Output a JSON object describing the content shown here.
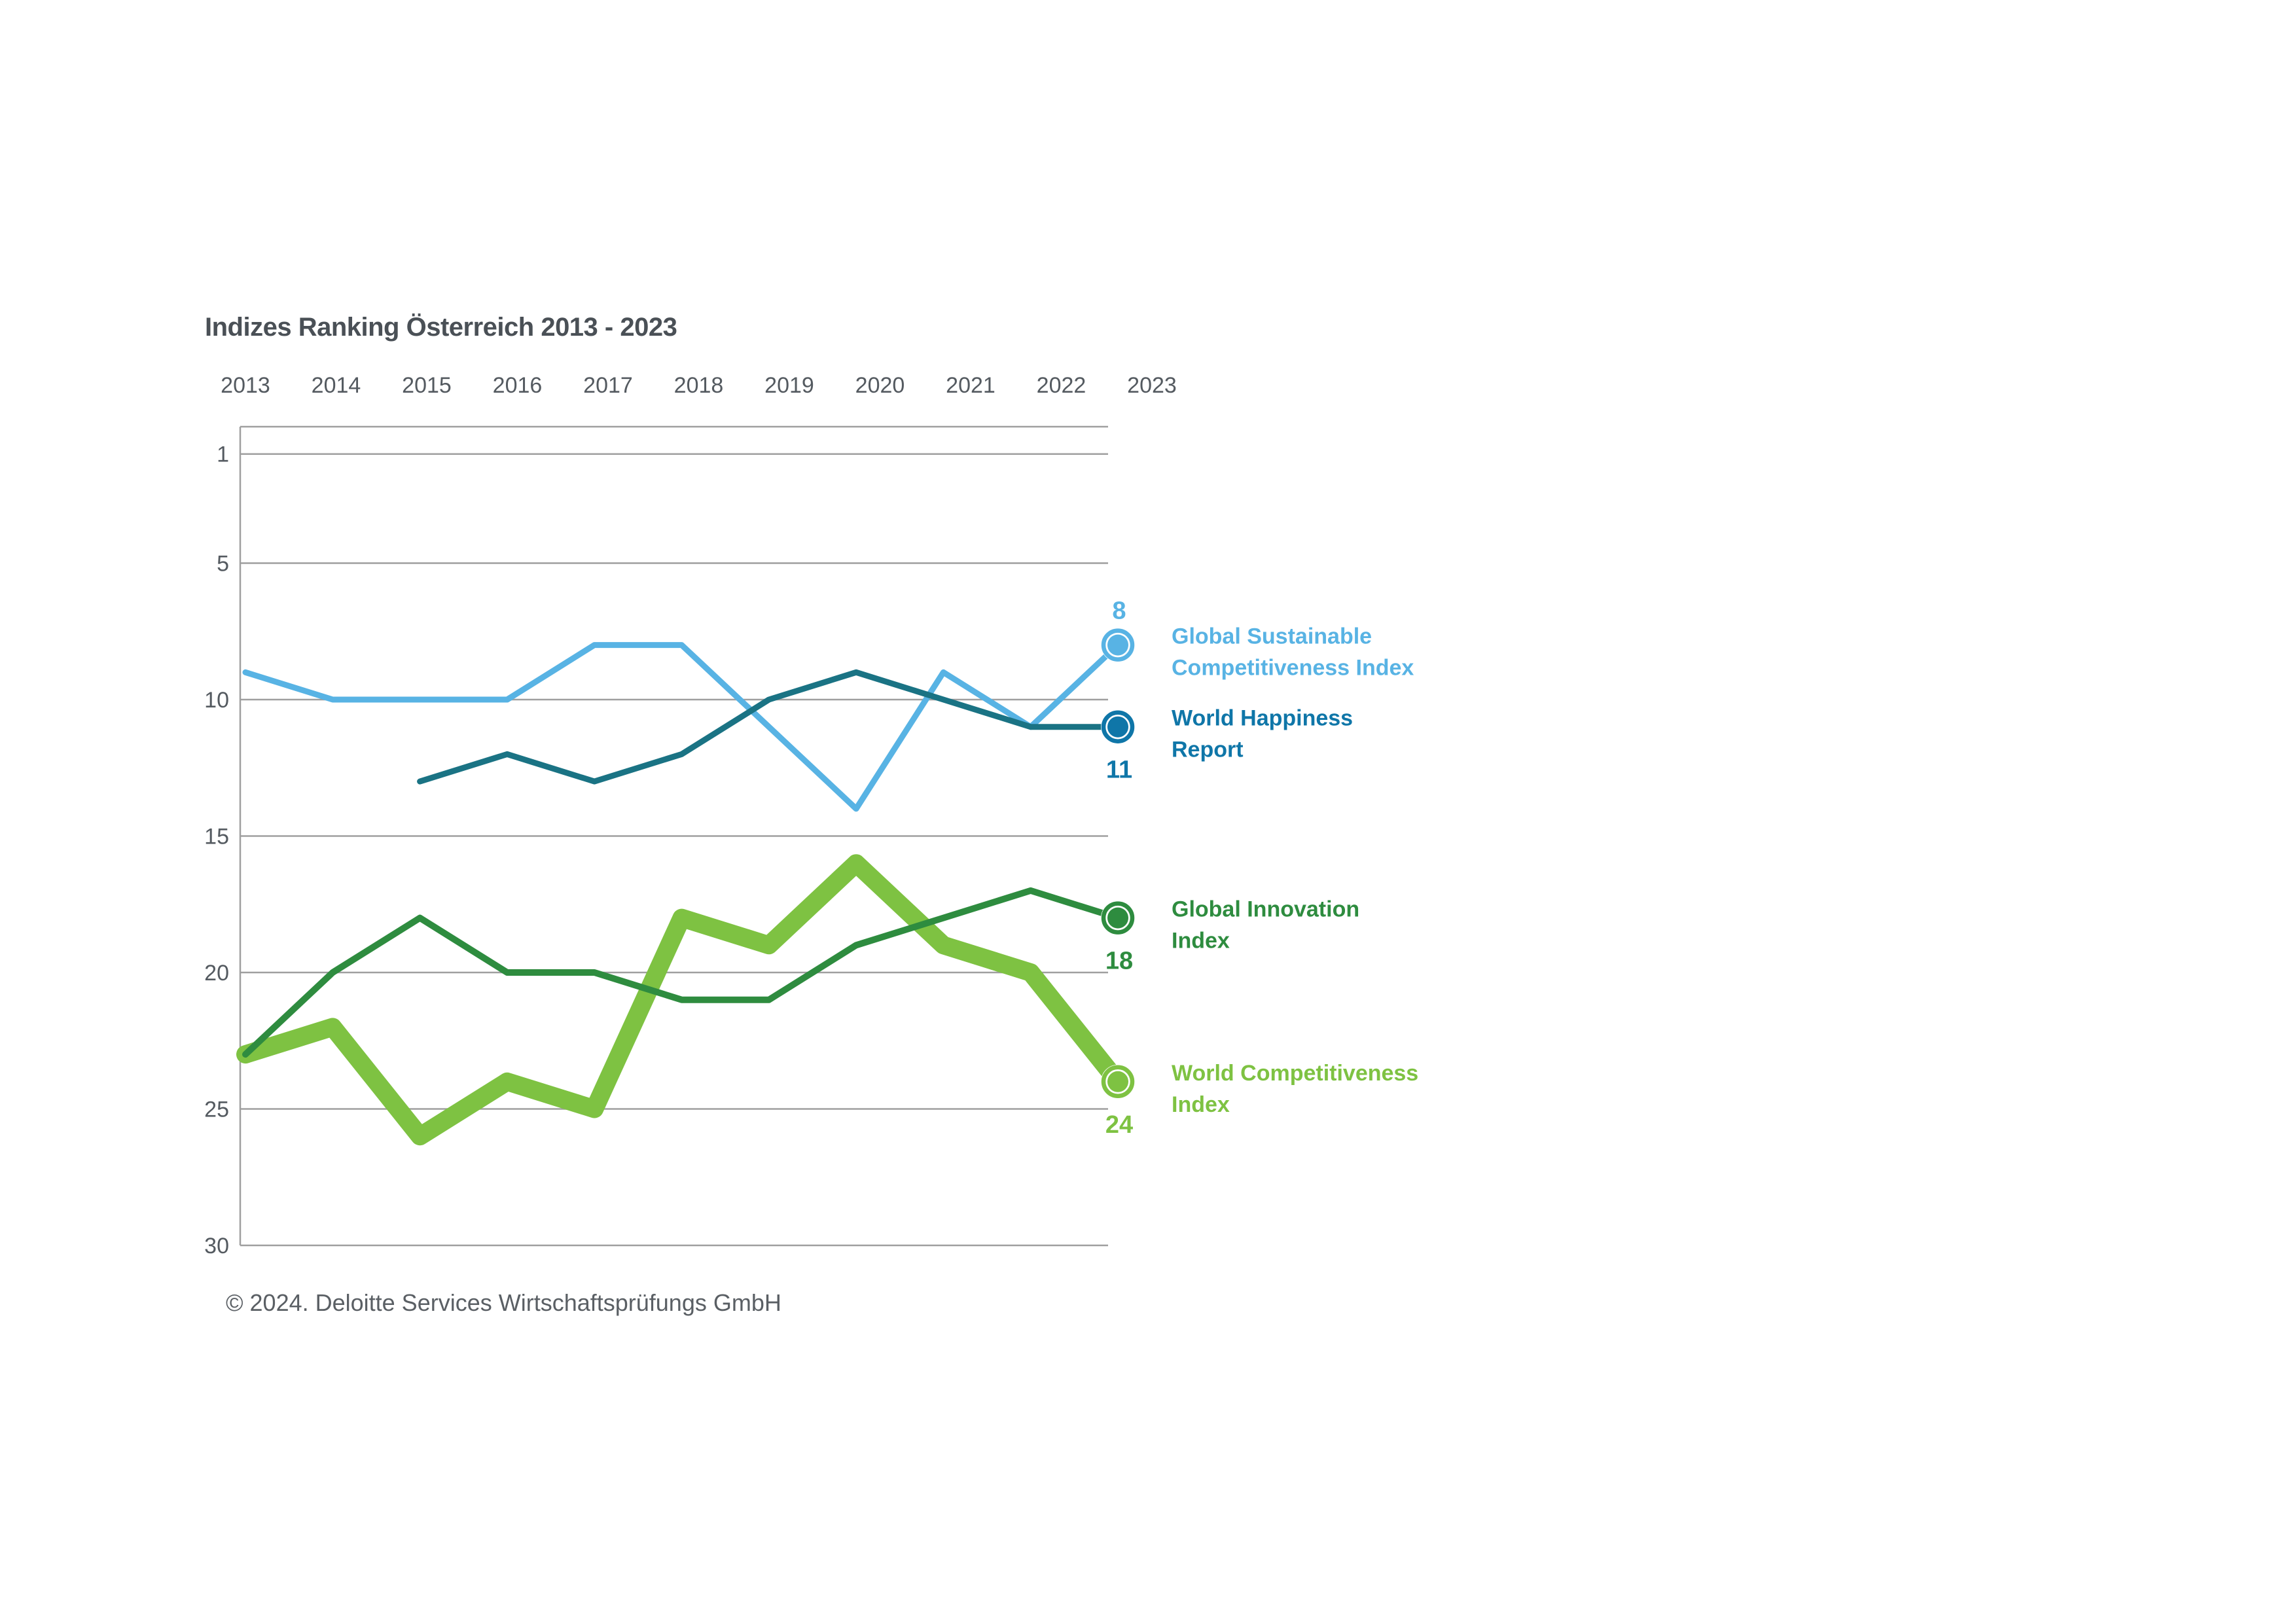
{
  "header": {
    "title": "Indizes Ranking Österreich 2013 - 2023"
  },
  "footer": {
    "copyright": "© 2024. Deloitte Services Wirtschaftsprüfungs GmbH"
  },
  "chart_data": {
    "type": "line",
    "title": "Indizes Ranking Österreich 2013 - 2023",
    "x_labels": [
      "2013",
      "2014",
      "2015",
      "2016",
      "2017",
      "2018",
      "2019",
      "2020",
      "2021",
      "2022",
      "2023"
    ],
    "y_ticks": [
      1,
      5,
      10,
      15,
      20,
      25,
      30
    ],
    "ylim": [
      0,
      30
    ],
    "y_axis_note": "ranking position, 1 = best, axis inverted (1 at top)",
    "grid": "horizontal gridlines on",
    "legend_position": "right of chart at 2023 end points",
    "grid_color": "#9f9f9f",
    "axis_text_color": "#545a60",
    "title_color": "#4a5056",
    "series": [
      {
        "id": "gsci",
        "name": "Global Sustainable Competitiveness Index",
        "legend_lines": [
          "Global Sustainable",
          "Competitiveness Index"
        ],
        "color": "#58b3e4",
        "marker_color": "#58b3e4",
        "values": [
          9,
          10,
          10,
          10,
          8,
          8,
          11,
          14,
          9,
          11,
          8
        ],
        "end_value_label": "8",
        "end_label_position": "above"
      },
      {
        "id": "whr",
        "name": "World Happiness Report",
        "legend_lines": [
          "World Happiness",
          "Report"
        ],
        "color": "#1a7384",
        "marker_color": "#0f76a8",
        "text_color": "#0f76a8",
        "values": [
          null,
          null,
          13,
          12,
          13,
          12,
          10,
          9,
          10,
          11,
          11
        ],
        "end_value_label": "11",
        "end_label_position": "below"
      },
      {
        "id": "gii",
        "name": "Global Innovation Index",
        "legend_lines": [
          "Global Innovation",
          "Index"
        ],
        "color": "#2e8c3f",
        "marker_color": "#2e8c3f",
        "values": [
          23,
          20,
          18,
          20,
          20,
          21,
          21,
          19,
          18,
          17,
          18
        ],
        "end_value_label": "18",
        "end_label_position": "below"
      },
      {
        "id": "wci",
        "name": "World Competitiveness Index",
        "legend_lines": [
          "World Competitiveness",
          "Index"
        ],
        "color": "#7ec242",
        "marker_color": "#7ec242",
        "values": [
          23,
          22,
          26,
          24,
          25,
          18,
          19,
          16,
          19,
          20,
          24
        ],
        "end_value_label": "24",
        "end_label_position": "below"
      }
    ]
  }
}
